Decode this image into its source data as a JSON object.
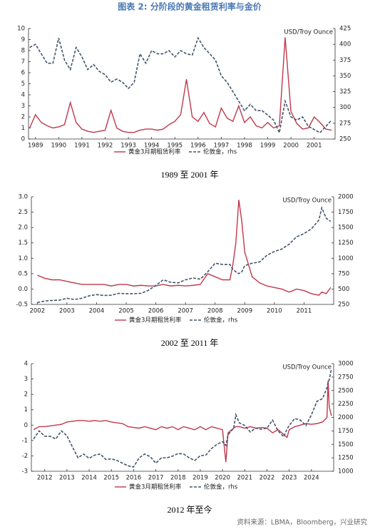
{
  "title": "图表 2:  分阶段的黄金租赁利率与金价",
  "source": "资料来源：LBMA，Bloomberg，兴业研究",
  "chart_data": [
    {
      "type": "line",
      "caption": "1989 至 2001 年",
      "y2_label": "USD/Troy Ounce",
      "xlim": [
        1988.7,
        2001.9
      ],
      "xticks": [
        1989,
        1990,
        1991,
        1992,
        1993,
        1994,
        1995,
        1996,
        1997,
        1998,
        1999,
        2000,
        2001
      ],
      "ylim": [
        0,
        10
      ],
      "yticks": [
        0,
        1,
        2,
        3,
        4,
        5,
        6,
        7,
        8,
        9,
        10
      ],
      "y2lim": [
        250,
        425
      ],
      "y2ticks": [
        250,
        275,
        300,
        325,
        350,
        375,
        400,
        425
      ],
      "x": [
        1988.75,
        1989,
        1989.25,
        1989.5,
        1989.75,
        1990,
        1990.25,
        1990.5,
        1990.75,
        1991,
        1991.25,
        1991.5,
        1991.75,
        1992,
        1992.25,
        1992.5,
        1992.75,
        1993,
        1993.25,
        1993.5,
        1993.75,
        1994,
        1994.25,
        1994.5,
        1994.75,
        1995,
        1995.25,
        1995.5,
        1995.75,
        1996,
        1996.25,
        1996.5,
        1996.75,
        1997,
        1997.25,
        1997.5,
        1997.75,
        1998,
        1998.25,
        1998.5,
        1998.75,
        1999,
        1999.25,
        1999.5,
        1999.75,
        2000,
        2000.25,
        2000.5,
        2000.75,
        2001,
        2001.25,
        2001.5,
        2001.75
      ],
      "series": [
        {
          "name": "黄金3月期租赁利率",
          "color": "#c0384b",
          "dashed": false,
          "values": [
            1.0,
            2.2,
            1.5,
            1.2,
            1.0,
            1.1,
            1.3,
            3.3,
            1.5,
            0.9,
            0.7,
            0.6,
            0.7,
            0.8,
            2.6,
            1.0,
            0.7,
            0.6,
            0.6,
            0.8,
            0.9,
            0.9,
            0.8,
            0.9,
            1.3,
            1.6,
            2.2,
            5.4,
            2.0,
            1.6,
            2.4,
            1.4,
            1.1,
            2.8,
            1.9,
            1.6,
            3.0,
            1.5,
            2.0,
            1.2,
            1.0,
            1.5,
            1.0,
            1.2,
            9.2,
            2.5,
            1.4,
            0.9,
            1.0,
            2.0,
            1.5,
            0.9,
            0.8
          ]
        },
        {
          "name": "伦敦金，rhs",
          "color": "#44546a",
          "dashed": true,
          "axis": "y2",
          "values": [
            395,
            400,
            385,
            370,
            370,
            410,
            375,
            360,
            395,
            380,
            360,
            368,
            357,
            352,
            340,
            345,
            340,
            330,
            340,
            385,
            370,
            390,
            385,
            385,
            390,
            380,
            390,
            385,
            383,
            410,
            395,
            385,
            375,
            350,
            340,
            325,
            310,
            295,
            305,
            295,
            295,
            288,
            280,
            260,
            310,
            285,
            280,
            285,
            270,
            265,
            260,
            270,
            280
          ]
        }
      ]
    },
    {
      "type": "line",
      "caption": "2002 至 2011 年",
      "y2_label": "USD/Troy Ounce",
      "xlim": [
        2001.8,
        2012.0
      ],
      "xticks": [
        2002,
        2003,
        2004,
        2005,
        2006,
        2007,
        2008,
        2009,
        2010,
        2011
      ],
      "ylim": [
        -0.5,
        3.0
      ],
      "yticks": [
        -0.5,
        {
          "value": 0,
          "label": "0.0"
        },
        0.5,
        {
          "value": 1,
          "label": "1.0"
        },
        1.5,
        {
          "value": 2,
          "label": "2.0"
        },
        2.5,
        {
          "value": 3,
          "label": "3.0"
        }
      ],
      "y2lim": [
        250,
        2000
      ],
      "y2ticks": [
        250,
        500,
        750,
        1000,
        1250,
        1500,
        1750,
        2000
      ],
      "x": [
        2002,
        2002.25,
        2002.5,
        2002.75,
        2003,
        2003.25,
        2003.5,
        2003.75,
        2004,
        2004.25,
        2004.5,
        2004.75,
        2005,
        2005.25,
        2005.5,
        2005.75,
        2006,
        2006.25,
        2006.5,
        2006.75,
        2007,
        2007.25,
        2007.5,
        2007.75,
        2008,
        2008.25,
        2008.5,
        2008.6,
        2008.7,
        2008.8,
        2008.9,
        2009,
        2009.25,
        2009.5,
        2009.75,
        2010,
        2010.25,
        2010.5,
        2010.75,
        2011,
        2011.25,
        2011.5,
        2011.6,
        2011.75,
        2011.9
      ],
      "series": [
        {
          "name": "黄金3月期租赁利率",
          "color": "#c0384b",
          "dashed": false,
          "values": [
            0.45,
            0.35,
            0.3,
            0.3,
            0.25,
            0.2,
            0.15,
            0.15,
            0.15,
            0.15,
            0.1,
            0.15,
            0.15,
            0.1,
            0.12,
            0.1,
            0.1,
            0.15,
            0.1,
            0.12,
            0.1,
            0.12,
            0.15,
            0.5,
            0.4,
            0.3,
            0.3,
            0.8,
            1.5,
            2.9,
            2.2,
            1.2,
            0.4,
            0.2,
            0.1,
            0.05,
            0,
            -0.1,
            0,
            -0.05,
            -0.15,
            -0.2,
            -0.1,
            -0.15,
            0.05
          ]
        },
        {
          "name": "伦敦金，rhs",
          "color": "#44546a",
          "dashed": true,
          "axis": "y2",
          "values": [
            280,
            305,
            315,
            320,
            350,
            330,
            350,
            390,
            410,
            395,
            400,
            430,
            425,
            425,
            430,
            480,
            560,
            650,
            610,
            600,
            650,
            680,
            660,
            780,
            920,
            900,
            900,
            820,
            780,
            750,
            780,
            880,
            920,
            940,
            1050,
            1110,
            1150,
            1230,
            1350,
            1400,
            1480,
            1620,
            1820,
            1650,
            1600
          ]
        }
      ]
    },
    {
      "type": "line",
      "caption": "2012 年至今",
      "y2_label": "USD/Troy Ounce",
      "xlim": [
        2011.4,
        2025.0
      ],
      "xticks": [
        2012,
        2013,
        2014,
        2015,
        2016,
        2017,
        2018,
        2019,
        2020,
        2021,
        2022,
        2023,
        2024
      ],
      "ylim": [
        -3,
        4
      ],
      "yticks": [
        -3,
        -2,
        -1,
        0,
        1,
        2,
        3,
        4
      ],
      "y2lim": [
        1000,
        3000
      ],
      "y2ticks": [
        1000,
        1250,
        1500,
        1750,
        2000,
        2250,
        2500,
        2750,
        3000
      ],
      "x": [
        2011.5,
        2011.75,
        2012,
        2012.25,
        2012.5,
        2012.75,
        2013,
        2013.25,
        2013.5,
        2013.75,
        2014,
        2014.25,
        2014.5,
        2014.75,
        2015,
        2015.25,
        2015.5,
        2015.75,
        2016,
        2016.25,
        2016.5,
        2016.75,
        2017,
        2017.25,
        2017.5,
        2017.75,
        2018,
        2018.25,
        2018.5,
        2018.75,
        2019,
        2019.25,
        2019.5,
        2019.75,
        2020,
        2020.15,
        2020.25,
        2020.5,
        2020.6,
        2020.75,
        2021,
        2021.25,
        2021.5,
        2021.75,
        2022,
        2022.25,
        2022.5,
        2022.75,
        2022.9,
        2023,
        2023.25,
        2023.5,
        2023.75,
        2024,
        2024.25,
        2024.5,
        2024.7,
        2024.75,
        2024.8,
        2024.9
      ],
      "series": [
        {
          "name": "黄金3月期租赁利率",
          "color": "#c0384b",
          "dashed": false,
          "values": [
            -0.3,
            -0.1,
            -0.1,
            -0.05,
            0,
            0.05,
            0.2,
            0.25,
            0.3,
            0.3,
            0.25,
            0.3,
            0.25,
            0.3,
            0.2,
            0.15,
            0.1,
            -0.1,
            -0.15,
            -0.2,
            -0.1,
            -0.2,
            -0.3,
            -0.1,
            -0.2,
            -0.1,
            -0.3,
            -0.1,
            -0.2,
            -0.3,
            -0.1,
            -0.3,
            -0.1,
            -0.2,
            -0.3,
            -2.4,
            -0.5,
            -0.2,
            -0.1,
            -0.1,
            -0.2,
            -0.1,
            -0.2,
            -0.15,
            -0.2,
            -0.5,
            -0.3,
            -0.6,
            -0.8,
            -0.3,
            -0.1,
            0,
            0.1,
            0.05,
            0.1,
            0.2,
            0.5,
            2.9,
            1.2,
            0.6
          ]
        },
        {
          "name": "伦敦金，rhs",
          "color": "#44546a",
          "dashed": true,
          "axis": "y2",
          "values": [
            1600,
            1750,
            1650,
            1650,
            1600,
            1750,
            1660,
            1450,
            1250,
            1320,
            1240,
            1300,
            1320,
            1220,
            1230,
            1200,
            1150,
            1100,
            1080,
            1250,
            1320,
            1270,
            1150,
            1250,
            1250,
            1280,
            1330,
            1320,
            1250,
            1200,
            1290,
            1300,
            1420,
            1500,
            1550,
            1480,
            1680,
            1800,
            2050,
            1900,
            1850,
            1730,
            1800,
            1780,
            1800,
            1950,
            1750,
            1640,
            1780,
            1850,
            1980,
            1950,
            1850,
            2050,
            2300,
            2350,
            2550,
            2650,
            2700,
            2900
          ]
        }
      ]
    }
  ]
}
